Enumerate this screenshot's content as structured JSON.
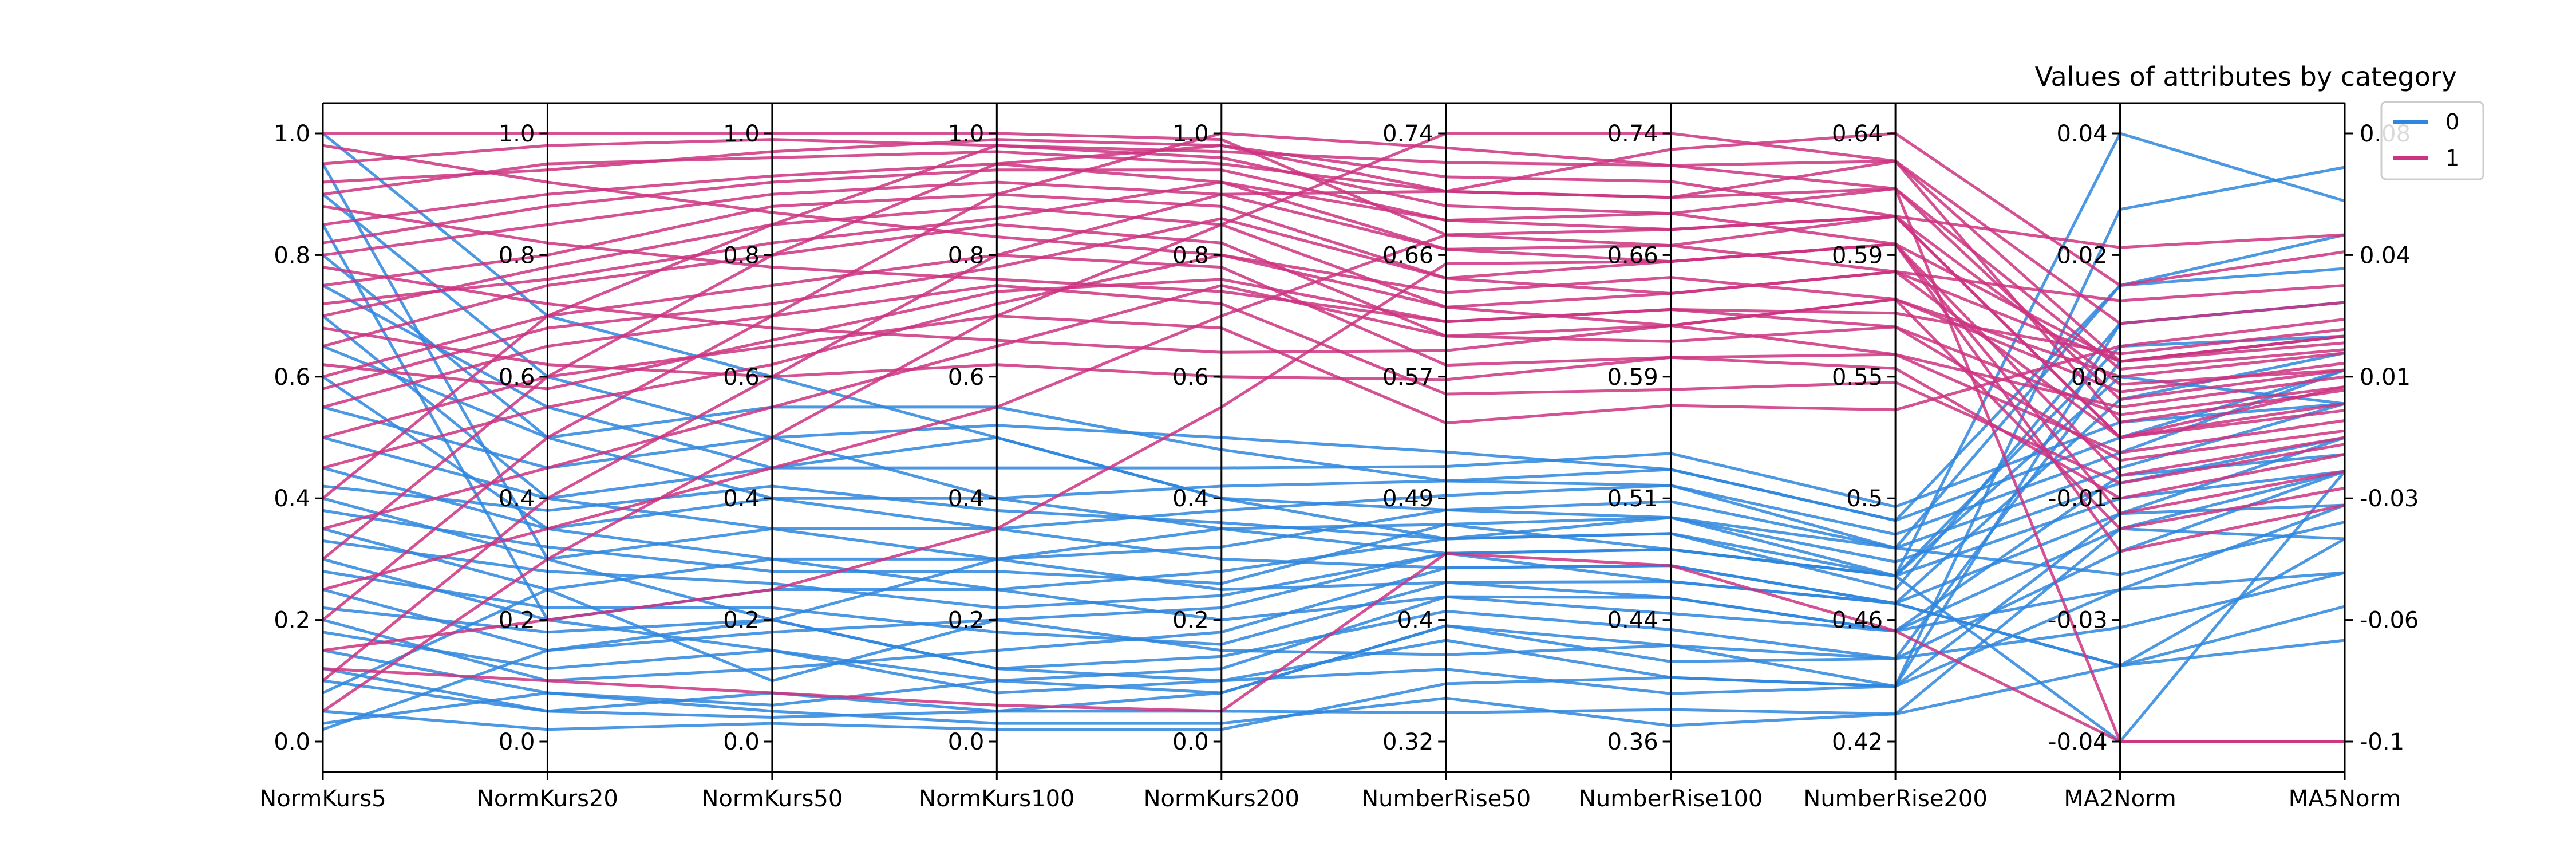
{
  "chart_data": {
    "type": "parallel-coordinates",
    "title": "Values of attributes by category",
    "grid": false,
    "legend_position": "top-right",
    "axes": [
      {
        "name": "NormKurs5",
        "min": 0.0,
        "max": 1.0,
        "ticks": [
          "0.0",
          "0.2",
          "0.4",
          "0.6",
          "0.8",
          "1.0"
        ]
      },
      {
        "name": "NormKurs20",
        "min": 0.0,
        "max": 1.0,
        "ticks": [
          "0.0",
          "0.2",
          "0.4",
          "0.6",
          "0.8",
          "1.0"
        ]
      },
      {
        "name": "NormKurs50",
        "min": 0.0,
        "max": 1.0,
        "ticks": [
          "0.0",
          "0.2",
          "0.4",
          "0.6",
          "0.8",
          "1.0"
        ]
      },
      {
        "name": "NormKurs100",
        "min": 0.0,
        "max": 1.0,
        "ticks": [
          "0.0",
          "0.2",
          "0.4",
          "0.6",
          "0.8",
          "1.0"
        ]
      },
      {
        "name": "NormKurs200",
        "min": 0.0,
        "max": 1.0,
        "ticks": [
          "0.0",
          "0.2",
          "0.4",
          "0.6",
          "0.8",
          "1.0"
        ]
      },
      {
        "name": "NumberRise50",
        "min": 0.32,
        "max": 0.74,
        "ticks": [
          "0.32",
          "0.4",
          "0.49",
          "0.57",
          "0.66",
          "0.74"
        ]
      },
      {
        "name": "NumberRise100",
        "min": 0.36,
        "max": 0.74,
        "ticks": [
          "0.36",
          "0.44",
          "0.51",
          "0.59",
          "0.66",
          "0.74"
        ]
      },
      {
        "name": "NumberRise200",
        "min": 0.42,
        "max": 0.64,
        "ticks": [
          "0.42",
          "0.46",
          "0.5",
          "0.55",
          "0.59",
          "0.64"
        ]
      },
      {
        "name": "MA2Norm",
        "min": -0.04,
        "max": 0.04,
        "ticks": [
          "-0.04",
          "-0.03",
          "-0.01",
          "0.0",
          "0.02",
          "0.04"
        ]
      },
      {
        "name": "MA5Norm",
        "min": -0.1,
        "max": 0.08,
        "ticks": [
          "-0.1",
          "-0.06",
          "-0.03",
          "0.01",
          "0.04",
          "0.08"
        ]
      }
    ],
    "series": [
      {
        "name": "0",
        "color": "#2e86de",
        "lines": [
          [
            0.05,
            0.02,
            0.03,
            0.02,
            0.02,
            0.36,
            0.4,
            0.44,
            -0.02,
            -0.03
          ],
          [
            0.1,
            0.05,
            0.04,
            0.05,
            0.08,
            0.4,
            0.42,
            0.45,
            -0.015,
            -0.02
          ],
          [
            0.15,
            0.08,
            0.06,
            0.1,
            0.12,
            0.42,
            0.45,
            0.46,
            -0.012,
            -0.04
          ],
          [
            0.2,
            0.1,
            0.12,
            0.15,
            0.18,
            0.44,
            0.47,
            0.47,
            -0.01,
            -0.03
          ],
          [
            0.25,
            0.15,
            0.18,
            0.2,
            0.22,
            0.45,
            0.48,
            0.48,
            -0.008,
            -0.02
          ],
          [
            0.3,
            0.2,
            0.25,
            0.25,
            0.28,
            0.46,
            0.5,
            0.485,
            -0.006,
            -0.01
          ],
          [
            0.35,
            0.25,
            0.3,
            0.3,
            0.32,
            0.48,
            0.51,
            0.49,
            -0.004,
            0.0
          ],
          [
            0.4,
            0.3,
            0.35,
            0.35,
            0.38,
            0.49,
            0.52,
            0.495,
            -0.002,
            0.01
          ],
          [
            0.45,
            0.35,
            0.4,
            0.4,
            0.42,
            0.5,
            0.53,
            0.5,
            0.0,
            0.01
          ],
          [
            0.5,
            0.4,
            0.45,
            0.45,
            0.45,
            0.51,
            0.54,
            0.505,
            0.002,
            0.0
          ],
          [
            0.6,
            0.35,
            0.3,
            0.25,
            0.2,
            0.42,
            0.44,
            0.46,
            -0.02,
            -0.05
          ],
          [
            0.7,
            0.4,
            0.35,
            0.3,
            0.25,
            0.43,
            0.46,
            0.47,
            -0.03,
            -0.04
          ],
          [
            0.8,
            0.5,
            0.4,
            0.35,
            0.3,
            0.44,
            0.47,
            0.47,
            -0.03,
            -0.06
          ],
          [
            0.9,
            0.6,
            0.5,
            0.4,
            0.35,
            0.45,
            0.48,
            0.48,
            0.04,
            0.06
          ],
          [
            1.0,
            0.7,
            0.6,
            0.5,
            0.4,
            0.46,
            0.49,
            0.48,
            -0.04,
            -0.02
          ],
          [
            0.02,
            0.15,
            0.2,
            0.3,
            0.35,
            0.47,
            0.5,
            0.49,
            0.02,
            0.05
          ],
          [
            0.08,
            0.25,
            0.1,
            0.2,
            0.15,
            0.38,
            0.42,
            0.44,
            -0.01,
            -0.01
          ],
          [
            0.12,
            0.05,
            0.08,
            0.05,
            0.05,
            0.34,
            0.38,
            0.43,
            -0.03,
            -0.07
          ],
          [
            0.18,
            0.12,
            0.15,
            0.08,
            0.1,
            0.39,
            0.4,
            0.44,
            0.015,
            0.03
          ],
          [
            0.22,
            0.18,
            0.2,
            0.12,
            0.14,
            0.41,
            0.43,
            0.45,
            0.01,
            0.02
          ],
          [
            0.28,
            0.22,
            0.22,
            0.18,
            0.16,
            0.43,
            0.45,
            0.46,
            -0.005,
            -0.015
          ],
          [
            0.33,
            0.28,
            0.26,
            0.22,
            0.24,
            0.45,
            0.46,
            0.47,
            0.005,
            0.015
          ],
          [
            0.38,
            0.32,
            0.28,
            0.28,
            0.26,
            0.47,
            0.48,
            0.48,
            0.012,
            0.02
          ],
          [
            0.55,
            0.45,
            0.5,
            0.52,
            0.5,
            0.52,
            0.53,
            0.5,
            0.02,
            0.04
          ],
          [
            0.65,
            0.5,
            0.55,
            0.55,
            0.48,
            0.5,
            0.52,
            0.49,
            -0.018,
            -0.035
          ],
          [
            0.75,
            0.55,
            0.45,
            0.5,
            0.4,
            0.48,
            0.5,
            0.48,
            0.008,
            0.0
          ],
          [
            0.85,
            0.2,
            0.15,
            0.1,
            0.08,
            0.4,
            0.41,
            0.45,
            -0.025,
            -0.05
          ],
          [
            0.95,
            0.3,
            0.2,
            0.12,
            0.1,
            0.37,
            0.39,
            0.44,
            0.03,
            0.07
          ],
          [
            0.03,
            0.08,
            0.05,
            0.03,
            0.03,
            0.35,
            0.37,
            0.43,
            -0.012,
            -0.02
          ],
          [
            0.42,
            0.38,
            0.42,
            0.38,
            0.36,
            0.46,
            0.49,
            0.475,
            0.015,
            0.03
          ]
        ]
      },
      {
        "name": "1",
        "color": "#cc3380",
        "lines": [
          [
            0.95,
            0.98,
            0.99,
            0.98,
            0.97,
            0.72,
            0.72,
            0.63,
            0.01,
            0.02
          ],
          [
            0.9,
            0.95,
            0.96,
            0.97,
            0.95,
            0.7,
            0.7,
            0.62,
            0.005,
            0.01
          ],
          [
            0.85,
            0.9,
            0.93,
            0.95,
            0.92,
            0.68,
            0.68,
            0.61,
            0.0,
            0.0
          ],
          [
            0.8,
            0.85,
            0.9,
            0.92,
            0.9,
            0.66,
            0.66,
            0.6,
            -0.005,
            -0.01
          ],
          [
            0.75,
            0.8,
            0.88,
            0.9,
            0.88,
            0.64,
            0.64,
            0.59,
            0.01,
            0.02
          ],
          [
            0.7,
            0.78,
            0.85,
            0.88,
            0.85,
            0.62,
            0.62,
            0.58,
            0.008,
            0.015
          ],
          [
            0.65,
            0.75,
            0.8,
            0.85,
            0.82,
            0.6,
            0.61,
            0.57,
            0.003,
            0.005
          ],
          [
            0.6,
            0.7,
            0.75,
            0.8,
            0.78,
            0.58,
            0.6,
            0.56,
            -0.002,
            -0.005
          ],
          [
            0.55,
            0.65,
            0.7,
            0.75,
            0.72,
            0.56,
            0.58,
            0.55,
            -0.006,
            -0.012
          ],
          [
            0.5,
            0.6,
            0.65,
            0.7,
            0.68,
            0.54,
            0.57,
            0.54,
            0.012,
            0.025
          ],
          [
            0.1,
            0.4,
            0.6,
            0.8,
            0.9,
            0.7,
            0.73,
            0.64,
            0.02,
            0.045
          ],
          [
            0.05,
            0.3,
            0.5,
            0.7,
            0.85,
            0.74,
            0.74,
            0.63,
            0.015,
            0.03
          ],
          [
            0.2,
            0.5,
            0.7,
            0.9,
            1.0,
            0.73,
            0.72,
            0.62,
            -0.04,
            -0.1
          ],
          [
            0.3,
            0.6,
            0.8,
            0.95,
            0.98,
            0.71,
            0.71,
            0.61,
            0.025,
            0.05
          ],
          [
            0.4,
            0.7,
            0.85,
            0.98,
            0.96,
            0.69,
            0.69,
            0.6,
            -0.01,
            -0.02
          ],
          [
            1.0,
            1.0,
            1.0,
            1.0,
            0.99,
            0.67,
            0.67,
            0.59,
            0.0,
            0.005
          ],
          [
            0.98,
            0.92,
            0.87,
            0.83,
            0.8,
            0.63,
            0.65,
            0.58,
            0.006,
            0.012
          ],
          [
            0.88,
            0.82,
            0.78,
            0.76,
            0.74,
            0.61,
            0.63,
            0.57,
            -0.003,
            -0.008
          ],
          [
            0.78,
            0.72,
            0.68,
            0.66,
            0.64,
            0.59,
            0.62,
            0.56,
            0.004,
            0.008
          ],
          [
            0.68,
            0.62,
            0.6,
            0.62,
            0.6,
            0.57,
            0.6,
            0.555,
            -0.008,
            -0.015
          ],
          [
            0.15,
            0.2,
            0.25,
            0.35,
            0.55,
            0.65,
            0.66,
            0.6,
            0.01,
            0.018
          ],
          [
            0.25,
            0.35,
            0.45,
            0.55,
            0.7,
            0.67,
            0.68,
            0.61,
            0.007,
            0.01
          ],
          [
            0.35,
            0.45,
            0.55,
            0.65,
            0.75,
            0.6,
            0.62,
            0.58,
            -0.012,
            -0.025
          ],
          [
            0.45,
            0.55,
            0.62,
            0.72,
            0.8,
            0.62,
            0.64,
            0.59,
            0.018,
            0.035
          ],
          [
            0.58,
            0.68,
            0.72,
            0.78,
            0.86,
            0.64,
            0.66,
            0.6,
            -0.015,
            -0.03
          ],
          [
            0.72,
            0.76,
            0.82,
            0.86,
            0.92,
            0.66,
            0.67,
            0.61,
            0.0,
            -0.002
          ],
          [
            0.82,
            0.88,
            0.92,
            0.94,
            0.94,
            0.68,
            0.69,
            0.62,
            0.009,
            0.016
          ],
          [
            0.92,
            0.94,
            0.97,
            0.99,
            0.98,
            0.7,
            0.7,
            0.63,
            0.002,
            0.004
          ],
          [
            0.12,
            0.1,
            0.08,
            0.06,
            0.05,
            0.45,
            0.47,
            0.46,
            -0.04,
            -0.1
          ],
          [
            0.62,
            0.58,
            0.66,
            0.74,
            0.76,
            0.61,
            0.63,
            0.575,
            0.011,
            0.022
          ]
        ]
      }
    ]
  }
}
